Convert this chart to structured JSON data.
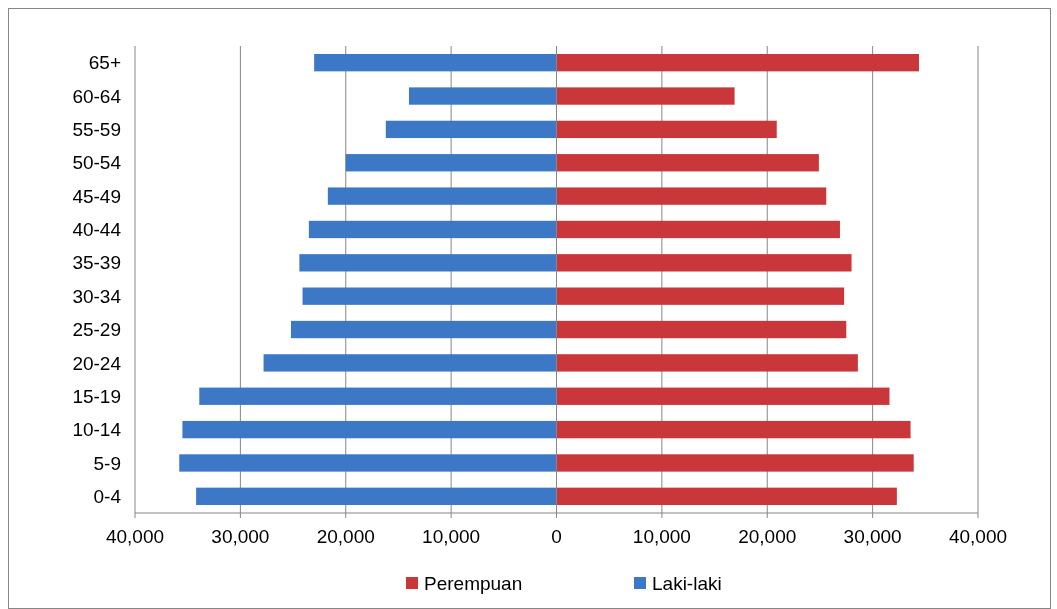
{
  "chart_data": {
    "type": "bar",
    "orientation": "horizontal",
    "stacked": true,
    "categories": [
      "65+",
      "60-64",
      "55-59",
      "50-54",
      "45-49",
      "40-44",
      "35-39",
      "30-34",
      "25-29",
      "20-24",
      "15-19",
      "10-14",
      "5-9",
      "0-4"
    ],
    "series": [
      {
        "name": "Perempuan",
        "color": "#c9373a",
        "values": [
          34400,
          16900,
          20900,
          24900,
          25600,
          26900,
          28000,
          27300,
          27500,
          28600,
          31600,
          33600,
          33900,
          32300
        ]
      },
      {
        "name": "Laki-laki",
        "color": "#3d78c6",
        "values": [
          -23000,
          -14000,
          -16200,
          -20000,
          -21700,
          -23500,
          -24400,
          -24100,
          -25200,
          -27800,
          -33900,
          -35500,
          -35800,
          -34200
        ]
      }
    ],
    "xlim": [
      -40000,
      40000
    ],
    "xticks": [
      {
        "value": -40000,
        "label": "40,000"
      },
      {
        "value": -30000,
        "label": "30,000"
      },
      {
        "value": -20000,
        "label": "20,000"
      },
      {
        "value": -10000,
        "label": "10,000"
      },
      0,
      {
        "value": 10000,
        "label": "10,000"
      },
      {
        "value": 20000,
        "label": "20,000"
      },
      {
        "value": 30000,
        "label": "30,000"
      },
      {
        "value": 40000,
        "label": "40,000"
      }
    ],
    "grid": "x",
    "legend": "bottom"
  }
}
